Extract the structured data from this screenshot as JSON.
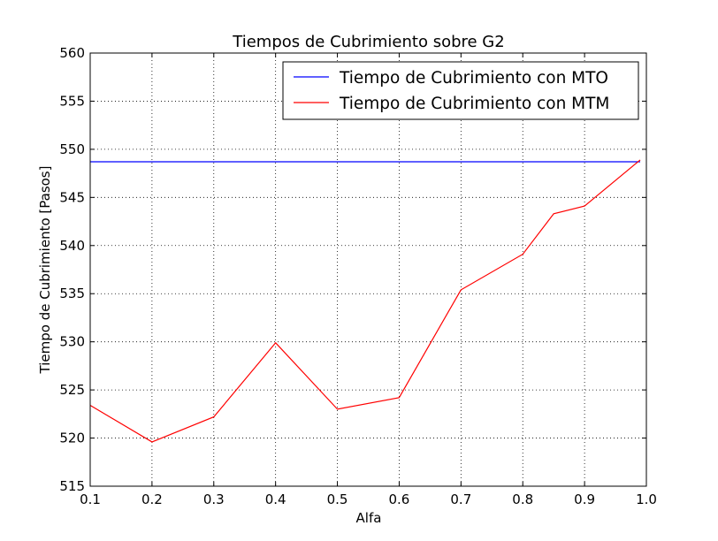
{
  "chart_data": {
    "type": "line",
    "title": "Tiempos de Cubrimiento sobre G2",
    "xlabel": "Alfa",
    "ylabel": "Tiempo de Cubrimiento [Pasos]",
    "xlim": [
      0.1,
      1.0
    ],
    "ylim": [
      515,
      560
    ],
    "xticks": [
      0.1,
      0.2,
      0.3,
      0.4,
      0.5,
      0.6,
      0.7,
      0.8,
      0.9,
      1.0
    ],
    "xtick_labels": [
      "0.1",
      "0.2",
      "0.3",
      "0.4",
      "0.5",
      "0.6",
      "0.7",
      "0.8",
      "0.9",
      "1.0"
    ],
    "yticks": [
      515,
      520,
      525,
      530,
      535,
      540,
      545,
      550,
      555,
      560
    ],
    "ytick_labels": [
      "515",
      "520",
      "525",
      "530",
      "535",
      "540",
      "545",
      "550",
      "555",
      "560"
    ],
    "grid": true,
    "legend_position": "top-right",
    "series": [
      {
        "name": "Tiempo de Cubrimiento con MTO",
        "color": "#0000ff",
        "x": [
          0.1,
          0.99
        ],
        "y": [
          548.7,
          548.7
        ]
      },
      {
        "name": "Tiempo de Cubrimiento con MTM",
        "color": "#ff0000",
        "x": [
          0.1,
          0.2,
          0.3,
          0.4,
          0.5,
          0.6,
          0.7,
          0.8,
          0.85,
          0.9,
          0.99
        ],
        "y": [
          523.4,
          519.6,
          522.2,
          529.9,
          523.0,
          524.2,
          535.4,
          539.1,
          543.3,
          544.1,
          548.9
        ]
      }
    ]
  }
}
